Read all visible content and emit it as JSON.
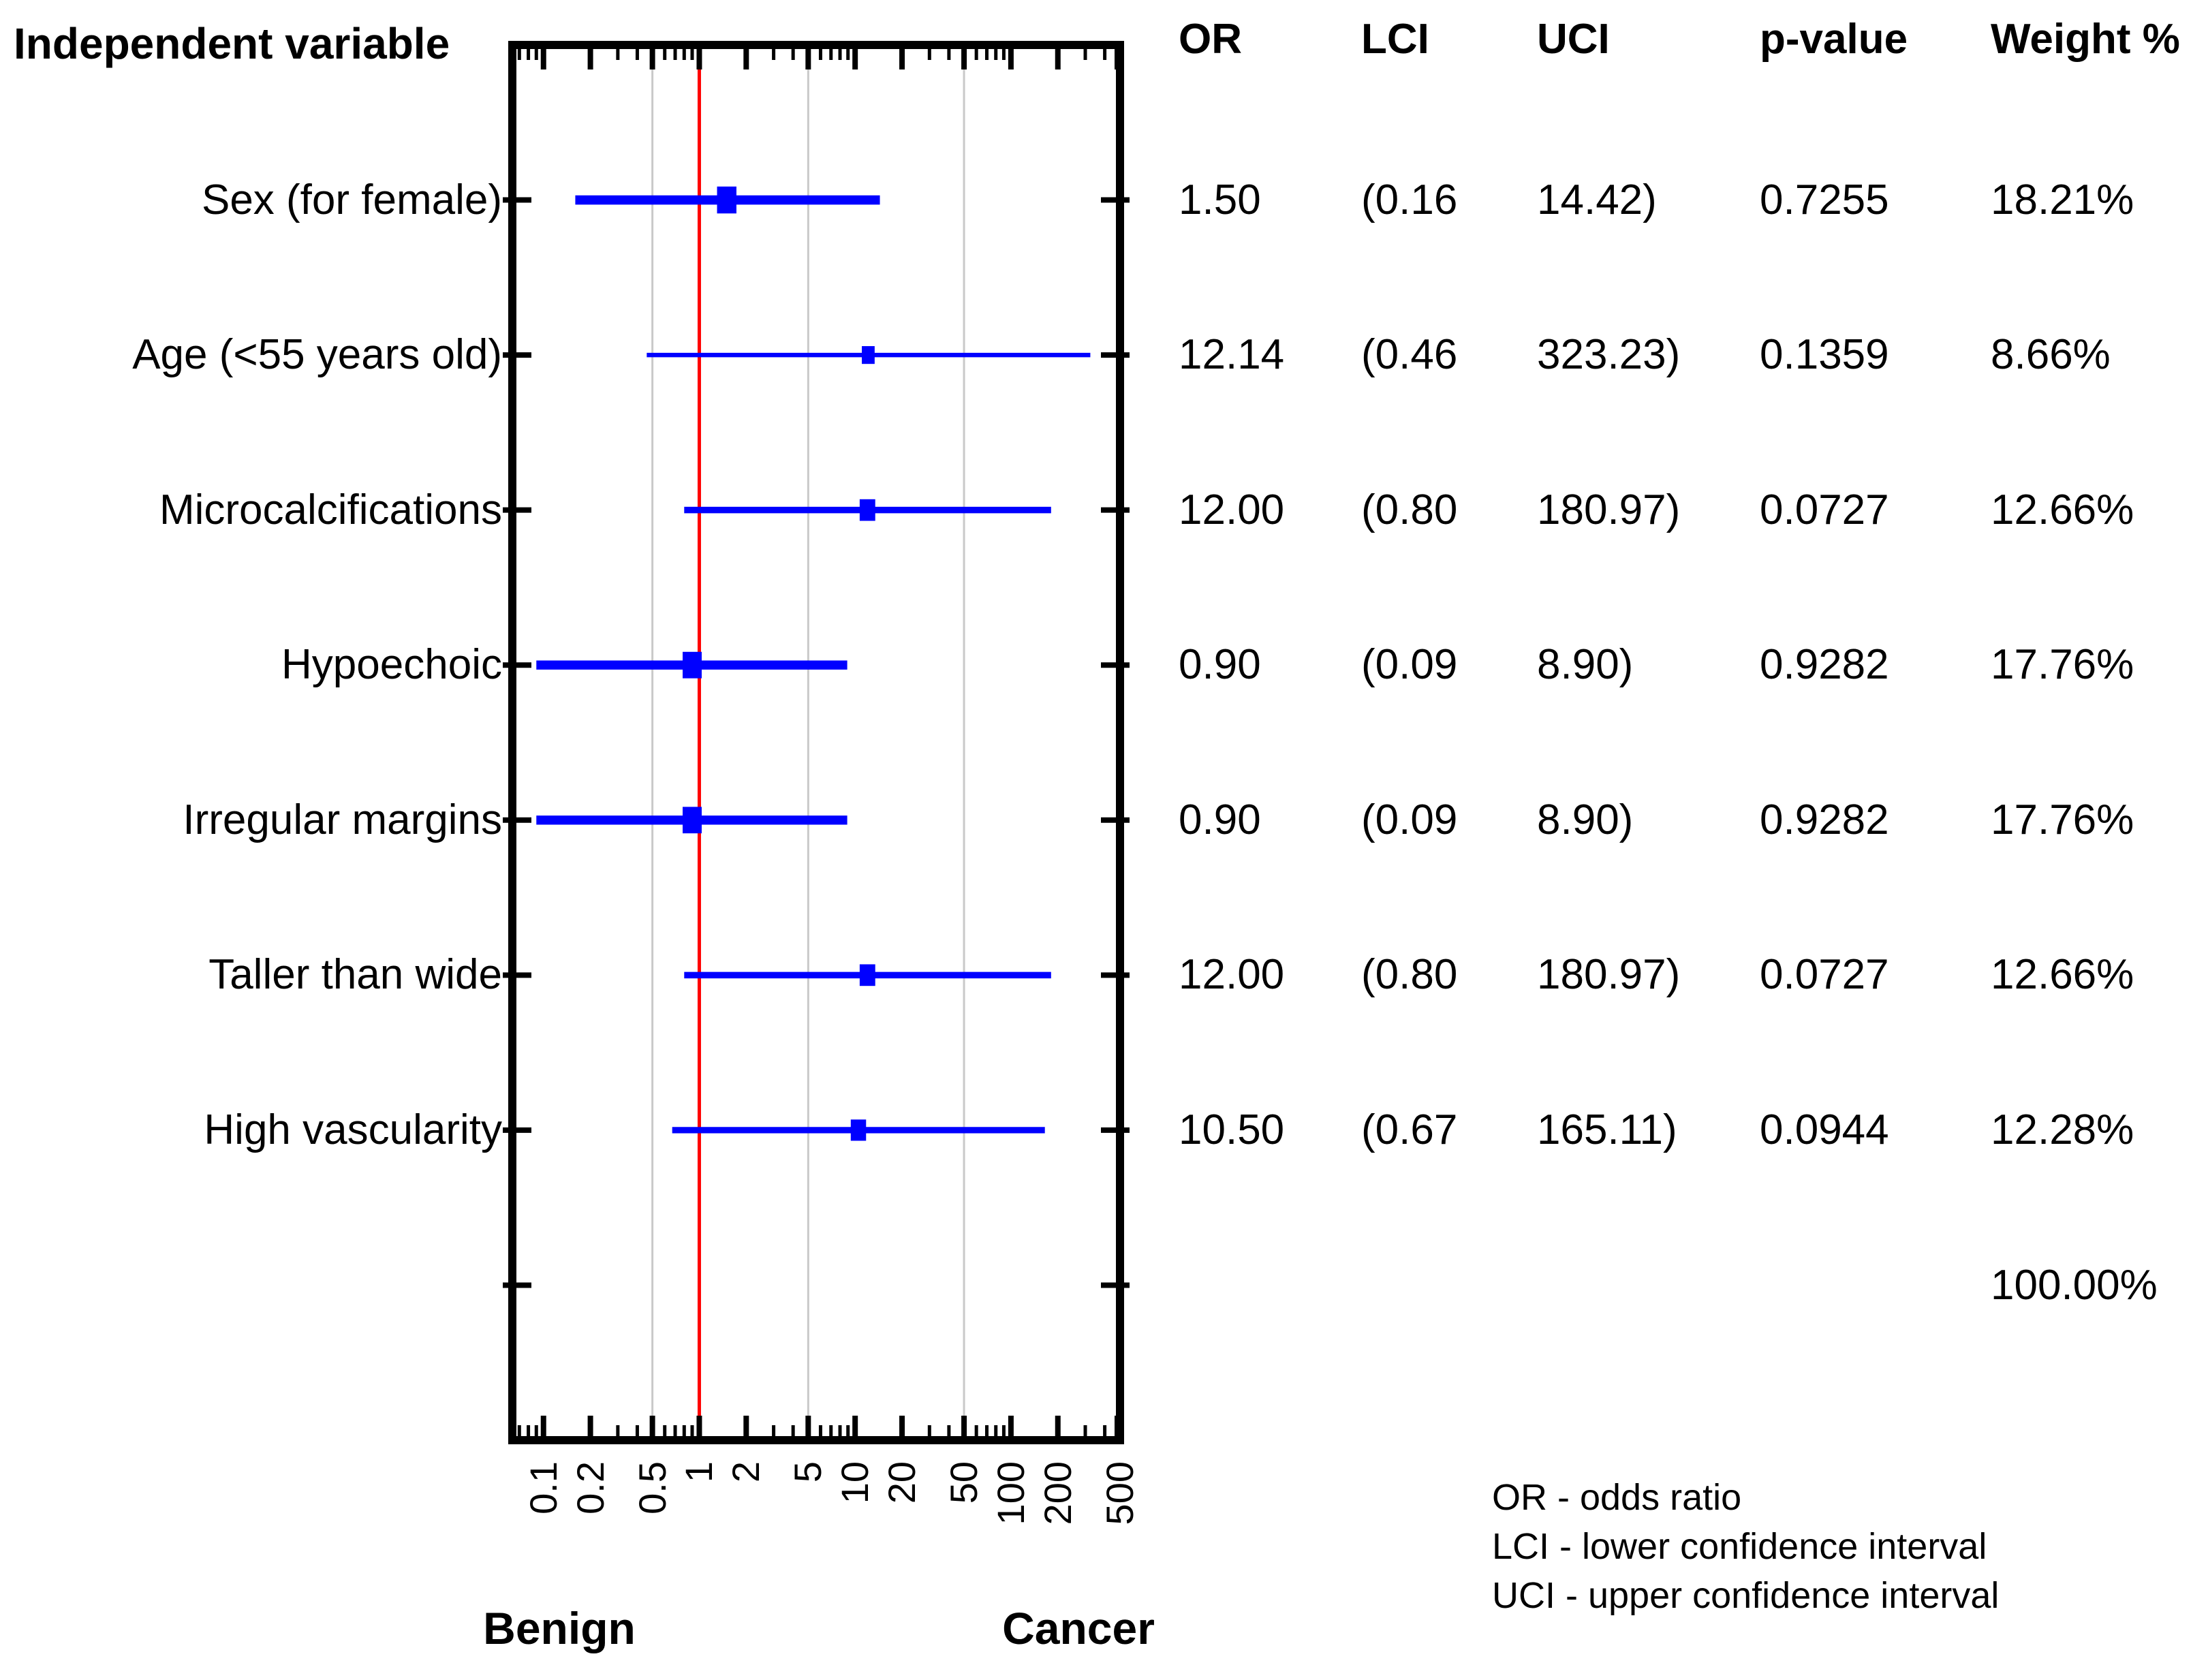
{
  "title": "Independent variable",
  "table": {
    "headers": {
      "or": "OR",
      "lci": "LCI",
      "uci": "UCI",
      "p": "p-value",
      "weight": "Weight %"
    },
    "total_weight": "100.00%"
  },
  "legend": [
    "OR - odds ratio",
    "LCI - lower confidence interval",
    "UCI - upper confidence interval"
  ],
  "chart_data": {
    "type": "forest",
    "title": "Independent variable",
    "axis": {
      "scale": "log10",
      "log_min": -1.2,
      "log_max": 2.7,
      "ticks": [
        0.1,
        0.2,
        0.5,
        1,
        2,
        5,
        10,
        20,
        50,
        100,
        200,
        500
      ],
      "tick_labels": [
        "0.1",
        "0.2",
        "0.5",
        "1",
        "2",
        "5",
        "10",
        "20",
        "50",
        "100",
        "200",
        "500"
      ],
      "gridlines": [
        0.5,
        5,
        50
      ],
      "reference_line": 1,
      "benign_label": "Benign",
      "cancer_label": "Cancer"
    },
    "colors": {
      "marker": "#0000ff",
      "ci_line": "#0000ff",
      "reference_line": "#ff0000",
      "gridline": "#c9c9c9",
      "frame": "#000000",
      "text": "#000000"
    },
    "rows": [
      {
        "label": "Sex (for female)",
        "or": 1.5,
        "lci": 0.16,
        "uci": 14.42,
        "p_value": 0.7255,
        "weight_pct": 18.21,
        "or_text": "1.50",
        "lci_text": "(0.16",
        "uci_text": "14.42)",
        "p_text": "0.7255",
        "weight_text": "18.21%"
      },
      {
        "label": "Age (<55 years old)",
        "or": 12.14,
        "lci": 0.46,
        "uci": 323.23,
        "p_value": 0.1359,
        "weight_pct": 8.66,
        "or_text": "12.14",
        "lci_text": "(0.46",
        "uci_text": "323.23)",
        "p_text": "0.1359",
        "weight_text": "8.66%"
      },
      {
        "label": "Microcalcifications",
        "or": 12.0,
        "lci": 0.8,
        "uci": 180.97,
        "p_value": 0.0727,
        "weight_pct": 12.66,
        "or_text": "12.00",
        "lci_text": "(0.80",
        "uci_text": "180.97)",
        "p_text": "0.0727",
        "weight_text": "12.66%"
      },
      {
        "label": "Hypoechoic",
        "or": 0.9,
        "lci": 0.09,
        "uci": 8.9,
        "p_value": 0.9282,
        "weight_pct": 17.76,
        "or_text": "0.90",
        "lci_text": "(0.09",
        "uci_text": "8.90)",
        "p_text": "0.9282",
        "weight_text": "17.76%"
      },
      {
        "label": "Irregular margins",
        "or": 0.9,
        "lci": 0.09,
        "uci": 8.9,
        "p_value": 0.9282,
        "weight_pct": 17.76,
        "or_text": "0.90",
        "lci_text": "(0.09",
        "uci_text": "8.90)",
        "p_text": "0.9282",
        "weight_text": "17.76%"
      },
      {
        "label": "Taller than wide",
        "or": 12.0,
        "lci": 0.8,
        "uci": 180.97,
        "p_value": 0.0727,
        "weight_pct": 12.66,
        "or_text": "12.00",
        "lci_text": "(0.80",
        "uci_text": "180.97)",
        "p_text": "0.0727",
        "weight_text": "12.66%"
      },
      {
        "label": "High vascularity",
        "or": 10.5,
        "lci": 0.67,
        "uci": 165.11,
        "p_value": 0.0944,
        "weight_pct": 12.28,
        "or_text": "10.50",
        "lci_text": "(0.67",
        "uci_text": "165.11)",
        "p_text": "0.0944",
        "weight_text": "12.28%"
      }
    ],
    "total_weight_text": "100.00%"
  }
}
